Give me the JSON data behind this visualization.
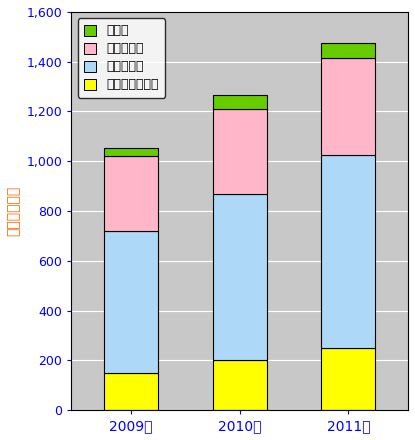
{
  "years": [
    "2009年",
    "2010年",
    "2011年"
  ],
  "fiber_laser": [
    150,
    200,
    250
  ],
  "gas_laser": [
    570,
    670,
    775
  ],
  "solid_laser": [
    300,
    340,
    390
  ],
  "other_laser": [
    35,
    55,
    60
  ],
  "colors": {
    "fiber": "#ffff00",
    "gas": "#add8f7",
    "solid": "#ffb6c8",
    "other": "#66cc00"
  },
  "legend_labels": [
    "その他",
    "固体レーザ",
    "気体レーザ",
    "ファイバレーザ"
  ],
  "ylabel": "（億円／年）",
  "ylim": [
    0,
    1600
  ],
  "yticks": [
    0,
    200,
    400,
    600,
    800,
    1000,
    1200,
    1400,
    1600
  ],
  "bar_width": 0.5,
  "fig_bg_color": "#ffffff",
  "plot_bg_color": "#c8c8c8",
  "tick_color": "#0000ff",
  "ylabel_color": "#ff6600",
  "xtick_color": "#0000ff"
}
